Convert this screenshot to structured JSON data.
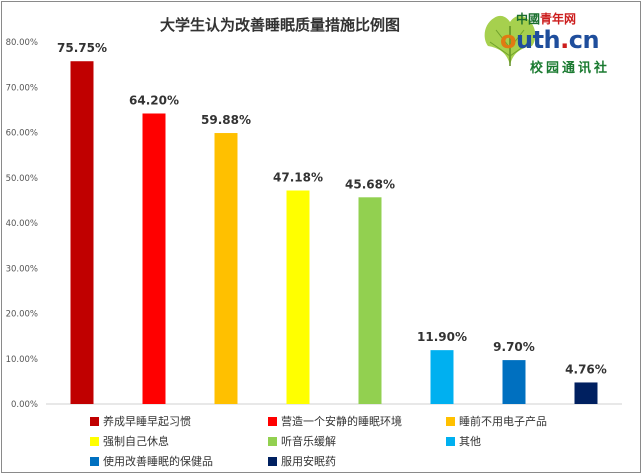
{
  "logo": {
    "cn_prefix": "中國",
    "cn_suffix": "青年网",
    "brand_o": "o",
    "brand_rest": "uth",
    "brand_dot": ".",
    "brand_tld": "cn",
    "sub": "校园通讯社"
  },
  "chart_data": {
    "type": "bar",
    "title": "大学生认为改善睡眠质量措施比例图",
    "xlabel": "",
    "ylabel": "",
    "ylim": [
      0,
      80
    ],
    "y_ticks": [
      "0.00%",
      "10.00%",
      "20.00%",
      "30.00%",
      "40.00%",
      "50.00%",
      "60.00%",
      "70.00%",
      "80.00%"
    ],
    "y_tick_values": [
      0,
      10,
      20,
      30,
      40,
      50,
      60,
      70,
      80
    ],
    "grid": false,
    "legend_position": "bottom",
    "categories": [
      "养成早睡早起习惯",
      "营造一个安静的睡眠环境",
      "睡前不用电子产品",
      "强制自己休息",
      "听音乐缓解",
      "其他",
      "使用改善睡眠的保健品",
      "服用安眠药"
    ],
    "values": [
      75.75,
      64.2,
      59.88,
      47.18,
      45.68,
      11.9,
      9.7,
      4.76
    ],
    "labels": [
      "75.75%",
      "64.20%",
      "59.88%",
      "47.18%",
      "45.68%",
      "11.90%",
      "9.70%",
      "4.76%"
    ],
    "colors": [
      "#c00000",
      "#ff0000",
      "#ffc000",
      "#ffff00",
      "#92d050",
      "#00b0f0",
      "#0070c0",
      "#002060"
    ]
  }
}
